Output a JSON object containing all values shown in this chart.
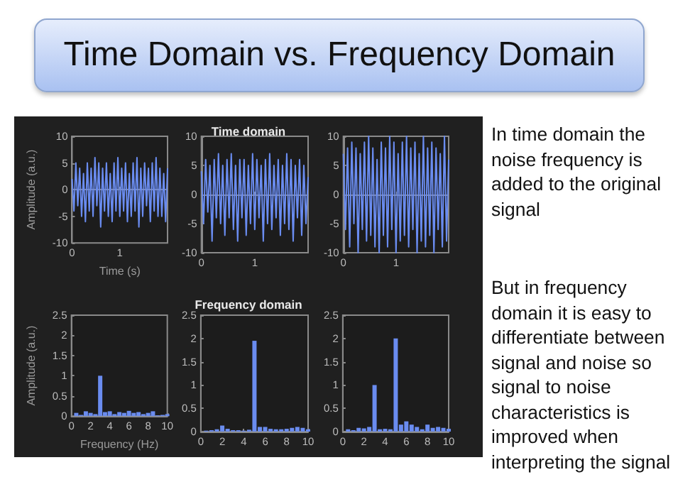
{
  "chart_data": [
    {
      "type": "line",
      "ylabel": "Amplitude (a.u.)",
      "xlabel": "Time (s)",
      "xlim": [
        0,
        2
      ],
      "xticks": [
        0,
        1
      ],
      "ylim": [
        -10,
        10
      ],
      "yticks": [
        -10,
        -5,
        0,
        5,
        10
      ],
      "marker": "none",
      "x": [
        0,
        0.04,
        0.08,
        0.12,
        0.16,
        0.2,
        0.24,
        0.28,
        0.32,
        0.36,
        0.4,
        0.44,
        0.48,
        0.52,
        0.56,
        0.6,
        0.64,
        0.68,
        0.72,
        0.76,
        0.8,
        0.84,
        0.88,
        0.92,
        0.96,
        1,
        1.04,
        1.08,
        1.12,
        1.16,
        1.2,
        1.24,
        1.28,
        1.32,
        1.36,
        1.4,
        1.44,
        1.48,
        1.52,
        1.56,
        1.6,
        1.64,
        1.68,
        1.72,
        1.76,
        1.8,
        1.84,
        1.88,
        1.92,
        1.96,
        2
      ],
      "series": [
        {
          "color": "#6a8cf0",
          "values": [
            2,
            -4,
            5,
            -3,
            4,
            -5,
            3,
            -6,
            5,
            -4,
            4,
            -5,
            6,
            -3,
            5,
            -7,
            4,
            -4,
            5,
            -5,
            3,
            -6,
            5,
            -4,
            6,
            -5,
            4,
            -4,
            5,
            -6,
            3,
            -5,
            5,
            -4,
            6,
            -7,
            4,
            -5,
            5,
            -3,
            4,
            -6,
            5,
            -4,
            6,
            -5,
            4,
            -5,
            3,
            -6,
            4
          ]
        }
      ]
    },
    {
      "type": "line",
      "title": "Time domain",
      "xlim": [
        0,
        2
      ],
      "xticks": [
        0,
        1
      ],
      "ylim": [
        -10,
        10
      ],
      "yticks": [
        -10,
        -5,
        0,
        5,
        10
      ],
      "marker": "none",
      "x": [
        0,
        0.04,
        0.08,
        0.12,
        0.16,
        0.2,
        0.24,
        0.28,
        0.32,
        0.36,
        0.4,
        0.44,
        0.48,
        0.52,
        0.56,
        0.6,
        0.64,
        0.68,
        0.72,
        0.76,
        0.8,
        0.84,
        0.88,
        0.92,
        0.96,
        1,
        1.04,
        1.08,
        1.12,
        1.16,
        1.2,
        1.24,
        1.28,
        1.32,
        1.36,
        1.4,
        1.44,
        1.48,
        1.52,
        1.56,
        1.6,
        1.64,
        1.68,
        1.72,
        1.76,
        1.8,
        1.84,
        1.88,
        1.92,
        1.96,
        2
      ],
      "series": [
        {
          "color": "#6a8cf0",
          "values": [
            4,
            -5,
            6,
            -3,
            5,
            -8,
            6,
            -4,
            7,
            -5,
            5,
            -7,
            6,
            -4,
            7,
            -6,
            5,
            -8,
            6,
            -4,
            6,
            -7,
            5,
            -5,
            7,
            -6,
            6,
            -4,
            5,
            -8,
            6,
            -5,
            7,
            -6,
            5,
            -4,
            6,
            -7,
            5,
            -5,
            7,
            -6,
            6,
            -8,
            5,
            -4,
            6,
            -7,
            5,
            -5,
            3
          ]
        }
      ]
    },
    {
      "type": "line",
      "xlim": [
        0,
        2
      ],
      "xticks": [
        0,
        1
      ],
      "ylim": [
        -10,
        10
      ],
      "yticks": [
        -10,
        -5,
        0,
        5,
        10
      ],
      "marker": "none",
      "x": [
        0,
        0.04,
        0.08,
        0.12,
        0.16,
        0.2,
        0.24,
        0.28,
        0.32,
        0.36,
        0.4,
        0.44,
        0.48,
        0.52,
        0.56,
        0.6,
        0.64,
        0.68,
        0.72,
        0.76,
        0.8,
        0.84,
        0.88,
        0.92,
        0.96,
        1,
        1.04,
        1.08,
        1.12,
        1.16,
        1.2,
        1.24,
        1.28,
        1.32,
        1.36,
        1.4,
        1.44,
        1.48,
        1.52,
        1.56,
        1.6,
        1.64,
        1.68,
        1.72,
        1.76,
        1.8,
        1.84,
        1.88,
        1.92,
        1.96,
        2
      ],
      "series": [
        {
          "color": "#6a8cf0",
          "values": [
            7,
            -6,
            8,
            -9,
            9,
            -5,
            8,
            -10,
            7,
            -6,
            9,
            -8,
            10,
            -7,
            8,
            -9,
            6,
            -10,
            9,
            -7,
            8,
            -9,
            10,
            -6,
            9,
            -10,
            7,
            -8,
            9,
            -7,
            10,
            -9,
            8,
            -6,
            9,
            -10,
            7,
            -8,
            10,
            -9,
            8,
            -7,
            9,
            -10,
            8,
            -6,
            7,
            -9,
            10,
            -8,
            6
          ]
        }
      ]
    },
    {
      "type": "bar",
      "ylabel": "Amplitude (a.u.)",
      "xlabel": "Frequency (Hz)",
      "xlim": [
        0,
        10
      ],
      "xticks": [
        0,
        2,
        4,
        6,
        8,
        10
      ],
      "ylim": [
        0,
        2.5
      ],
      "yticks": [
        0,
        0.5,
        1,
        1.5,
        2,
        2.5
      ],
      "x": [
        0.5,
        1,
        1.5,
        2,
        2.5,
        3,
        3.5,
        4,
        4.5,
        5,
        5.5,
        6,
        6.5,
        7,
        7.5,
        8,
        8.5,
        9,
        9.5,
        10
      ],
      "series": [
        {
          "color": "#6a8cf0",
          "values": [
            0.08,
            0.03,
            0.12,
            0.08,
            0.05,
            1,
            0.1,
            0.12,
            0.05,
            0.1,
            0.08,
            0.13,
            0.08,
            0.1,
            0.05,
            0.08,
            0.12,
            0.02,
            0.03,
            0.05
          ]
        }
      ]
    },
    {
      "type": "bar",
      "title": "Frequency domain",
      "xlim": [
        0,
        10
      ],
      "xticks": [
        0,
        2,
        4,
        6,
        8,
        10
      ],
      "ylim": [
        0,
        2.5
      ],
      "yticks": [
        0,
        0.5,
        1,
        1.5,
        2,
        2.5
      ],
      "x": [
        0.5,
        1,
        1.5,
        2,
        2.5,
        3,
        3.5,
        4,
        4.5,
        5,
        5.5,
        6,
        6.5,
        7,
        7.5,
        8,
        8.5,
        9,
        9.5,
        10
      ],
      "series": [
        {
          "color": "#6a8cf0",
          "values": [
            0.02,
            0.03,
            0.05,
            0.13,
            0.06,
            0.03,
            0.03,
            0.02,
            0.04,
            1.95,
            0.1,
            0.1,
            0.06,
            0.05,
            0.05,
            0.06,
            0.08,
            0.1,
            0.08,
            0.05
          ]
        }
      ]
    },
    {
      "type": "bar",
      "xlim": [
        0,
        10
      ],
      "xticks": [
        0,
        2,
        4,
        6,
        8,
        10
      ],
      "ylim": [
        0,
        2.5
      ],
      "yticks": [
        0,
        0.5,
        1,
        1.5,
        2,
        2.5
      ],
      "x": [
        0.5,
        1,
        1.5,
        2,
        2.5,
        3,
        3.5,
        4,
        4.5,
        5,
        5.5,
        6,
        6.5,
        7,
        7.5,
        8,
        8.5,
        9,
        9.5,
        10
      ],
      "series": [
        {
          "color": "#6a8cf0",
          "values": [
            0.05,
            0.03,
            0.08,
            0.07,
            0.1,
            1,
            0.05,
            0.06,
            0.05,
            2,
            0.15,
            0.22,
            0.15,
            0.1,
            0.05,
            0.15,
            0.08,
            0.1,
            0.08,
            0.06
          ]
        }
      ]
    },
    {
      "type": "other",
      "title": "Time Domain vs. Frequency Domain",
      "annotations": [
        "In time domain the noise frequency is added to the original signal",
        "But in frequency domain it is easy to differentiate between signal and noise so signal to noise characteristics is improved when interpreting the signal"
      ]
    }
  ]
}
